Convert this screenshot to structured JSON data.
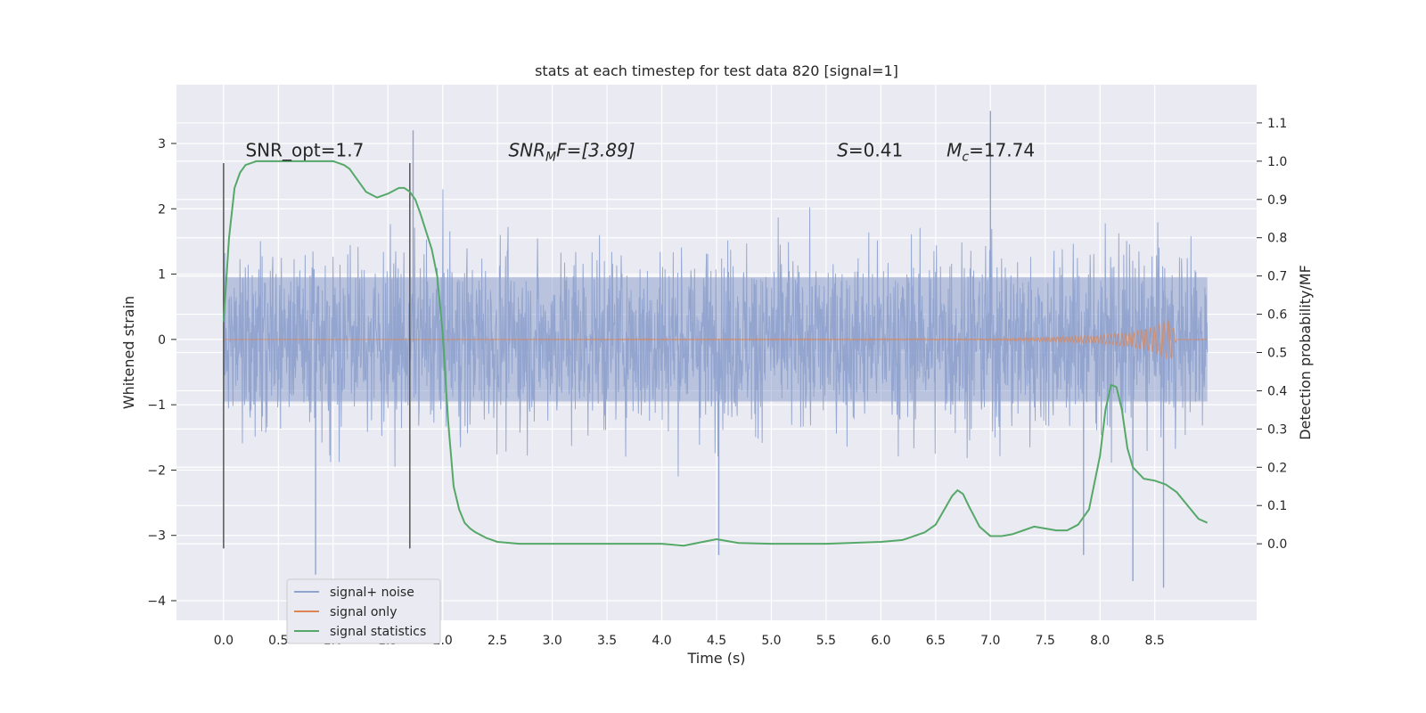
{
  "chart_data": {
    "type": "line",
    "title": "stats at each timestep for test data 820 [signal=1]",
    "xlabel": "Time (s)",
    "ylabel": "Whitened strain",
    "ylabel_right": "Detection probability/MF",
    "xlim": [
      -0.43,
      9.43
    ],
    "ylim": [
      -4.3,
      3.9
    ],
    "ylim_right": [
      -0.2,
      1.2
    ],
    "x_ticks": [
      0.0,
      0.5,
      1.0,
      1.5,
      2.0,
      2.5,
      3.0,
      3.5,
      4.0,
      4.5,
      5.0,
      5.5,
      6.0,
      6.5,
      7.0,
      7.5,
      8.0,
      8.5
    ],
    "x_tick_labels": [
      "0.0",
      "0.5",
      "1.0",
      "1.5",
      "2.0",
      "2.5",
      "3.0",
      "3.5",
      "4.0",
      "4.5",
      "5.0",
      "5.5",
      "6.0",
      "6.5",
      "7.0",
      "7.5",
      "8.0",
      "8.5"
    ],
    "y_ticks": [
      -4,
      -3,
      -2,
      -1,
      0,
      1,
      2,
      3
    ],
    "y_tick_labels": [
      "−4",
      "−3",
      "−2",
      "−1",
      "0",
      "1",
      "2",
      "3"
    ],
    "y_right_ticks": [
      0.0,
      0.1,
      0.2,
      0.3,
      0.4,
      0.5,
      0.6,
      0.7,
      0.8,
      0.9,
      1.0,
      1.1
    ],
    "y_right_tick_labels": [
      "0.0",
      "0.1",
      "0.2",
      "0.3",
      "0.4",
      "0.5",
      "0.6",
      "0.7",
      "0.8",
      "0.9",
      "1.0",
      "1.1"
    ],
    "grid": true,
    "legend_position": "lower-left",
    "series": [
      {
        "name": "signal+ noise",
        "color": "#8fa3ce",
        "axis": "left",
        "x_range": [
          0.0,
          8.98
        ],
        "approx_band": [
          -1.4,
          1.5
        ],
        "notable_extremes": [
          {
            "x": 0.84,
            "y": -3.6
          },
          {
            "x": 1.73,
            "y": 3.2
          },
          {
            "x": 4.52,
            "y": -3.3
          },
          {
            "x": 7.0,
            "y": 3.5
          },
          {
            "x": 7.85,
            "y": -3.3
          },
          {
            "x": 8.3,
            "y": -3.7
          },
          {
            "x": 8.58,
            "y": -3.8
          }
        ]
      },
      {
        "name": "signal only",
        "color": "#dd8452",
        "axis": "left",
        "x": [
          0.0,
          7.0,
          7.5,
          8.0,
          8.3,
          8.5,
          8.6,
          8.65,
          8.7,
          8.98
        ],
        "amplitude": [
          0.0,
          0.01,
          0.03,
          0.06,
          0.12,
          0.2,
          0.3,
          0.3,
          0.0,
          0.0
        ]
      },
      {
        "name": "signal statistics",
        "color": "#55a868",
        "axis": "right",
        "x": [
          0.0,
          0.05,
          0.1,
          0.15,
          0.2,
          0.3,
          0.5,
          0.7,
          0.9,
          1.0,
          1.1,
          1.15,
          1.2,
          1.3,
          1.4,
          1.5,
          1.6,
          1.65,
          1.7,
          1.75,
          1.8,
          1.9,
          1.95,
          2.0,
          2.05,
          2.1,
          2.15,
          2.2,
          2.25,
          2.3,
          2.4,
          2.5,
          2.7,
          3.0,
          3.5,
          4.0,
          4.2,
          4.5,
          4.7,
          5.0,
          5.5,
          6.0,
          6.2,
          6.4,
          6.5,
          6.6,
          6.65,
          6.7,
          6.75,
          6.8,
          6.9,
          7.0,
          7.1,
          7.2,
          7.3,
          7.4,
          7.5,
          7.6,
          7.7,
          7.8,
          7.9,
          8.0,
          8.05,
          8.1,
          8.15,
          8.2,
          8.25,
          8.3,
          8.4,
          8.5,
          8.6,
          8.7,
          8.8,
          8.9,
          8.98
        ],
        "y": [
          0.58,
          0.8,
          0.93,
          0.97,
          0.99,
          1.0,
          1.0,
          1.0,
          1.0,
          1.0,
          0.99,
          0.98,
          0.96,
          0.92,
          0.905,
          0.915,
          0.93,
          0.93,
          0.92,
          0.9,
          0.86,
          0.77,
          0.7,
          0.55,
          0.32,
          0.15,
          0.09,
          0.055,
          0.04,
          0.03,
          0.015,
          0.005,
          0.0,
          0.0,
          0.0,
          0.0,
          -0.005,
          0.012,
          0.002,
          0.0,
          0.0,
          0.005,
          0.01,
          0.03,
          0.05,
          0.1,
          0.125,
          0.14,
          0.13,
          0.1,
          0.045,
          0.02,
          0.02,
          0.025,
          0.035,
          0.045,
          0.04,
          0.035,
          0.035,
          0.05,
          0.09,
          0.23,
          0.35,
          0.415,
          0.41,
          0.35,
          0.25,
          0.2,
          0.17,
          0.165,
          0.155,
          0.135,
          0.1,
          0.065,
          0.055
        ]
      }
    ],
    "vertical_lines": [
      {
        "x": 0.0,
        "y_from": -3.2,
        "y_to": 2.7
      },
      {
        "x": 1.7,
        "y_from": -3.2,
        "y_to": 2.7
      }
    ],
    "annotations": [
      {
        "text_a": "SNR_opt=1.7",
        "x": 0.2,
        "y": 2.8
      },
      {
        "text_a": "SNR",
        "sub": "M",
        "text_b": "F=[3.89]",
        "x": 2.6,
        "y": 2.8,
        "italic": true
      },
      {
        "text_a": "S",
        "text_b": "=0.41",
        "x": 5.6,
        "y": 2.8,
        "italic_first": true
      },
      {
        "text_a": "M",
        "sub": "c",
        "text_b": "=17.74",
        "x": 6.6,
        "y": 2.8,
        "italic_first": true
      }
    ]
  }
}
